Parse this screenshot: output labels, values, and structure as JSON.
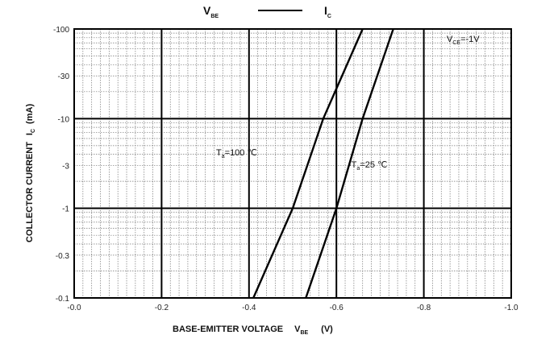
{
  "chart_data": {
    "type": "line",
    "title": {
      "left": "V",
      "left_sub": "BE",
      "right": "I",
      "right_sub": "C"
    },
    "xlabel": {
      "text": "BASE-EMITTER VOLTAGE",
      "sym": "V",
      "sym_sub": "BE",
      "unit": "(V)"
    },
    "ylabel": {
      "text": "COLLECTOR CURRENT",
      "sym": "I",
      "sym_sub": "C",
      "unit": "(mA)"
    },
    "condition": {
      "sym": "V",
      "sub": "CE",
      "value": "=-1V"
    },
    "xlim": [
      0,
      -1.0
    ],
    "ylim": [
      -0.1,
      -100
    ],
    "yscale": "log",
    "grid": true,
    "x_ticks": [
      "-0.0",
      "-0.2",
      "-0.4",
      "-0.6",
      "-0.8",
      "-1.0"
    ],
    "y_ticks": [
      "-0.1",
      "-0.3",
      "-1",
      "-3",
      "-10",
      "-30",
      "-100"
    ],
    "series": [
      {
        "label_sym": "T",
        "label_sub": "a",
        "label_val": "=100 ℃",
        "x": [
          -0.41,
          -0.5,
          -0.57,
          -0.66
        ],
        "y": [
          -0.1,
          -1,
          -10,
          -100
        ]
      },
      {
        "label_sym": "T",
        "label_sub": "a",
        "label_val": "=25 ℃",
        "x": [
          -0.53,
          -0.6,
          -0.66,
          -0.73
        ],
        "y": [
          -0.1,
          -1,
          -10,
          -100
        ]
      }
    ]
  }
}
